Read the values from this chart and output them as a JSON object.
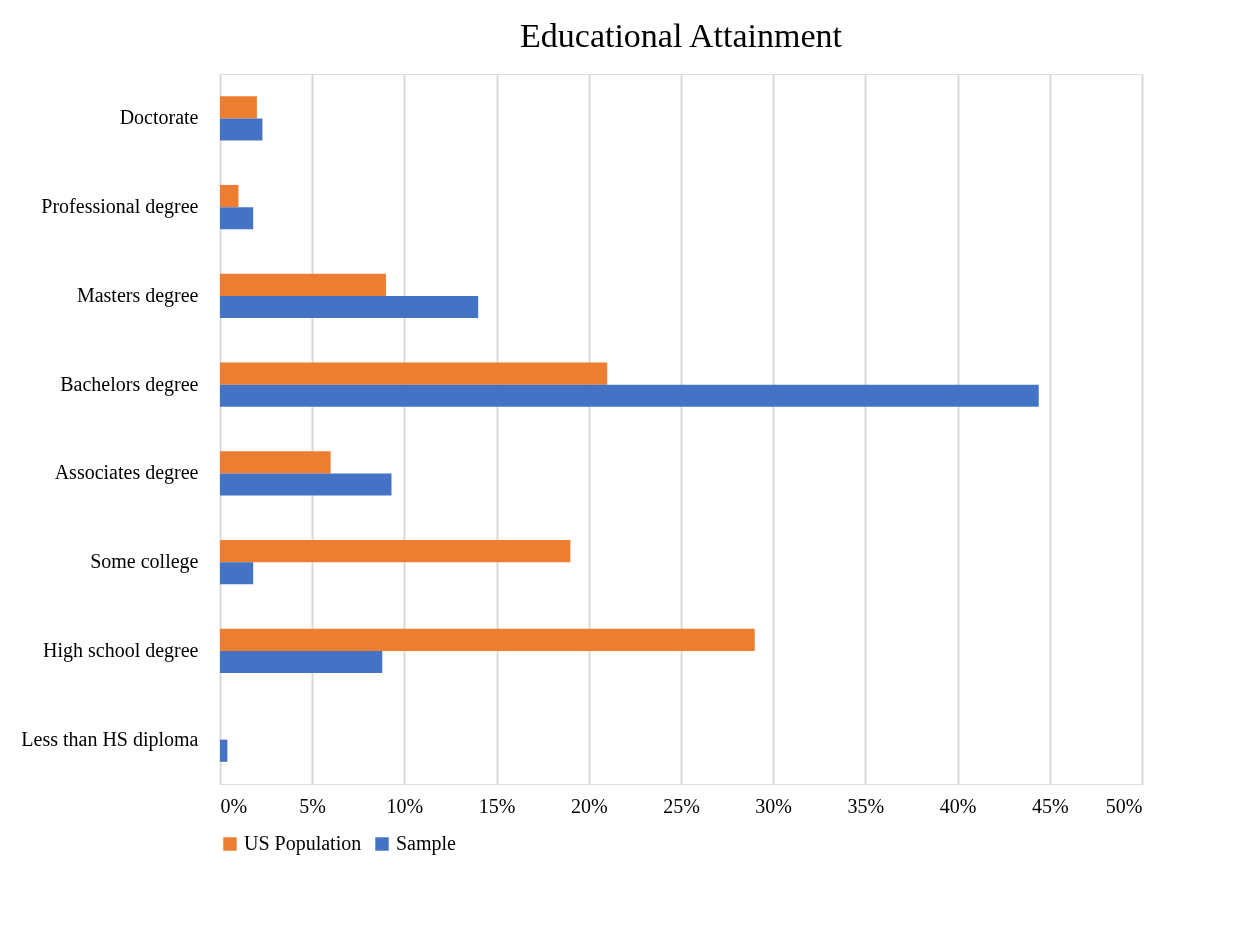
{
  "chart_data": {
    "type": "bar",
    "orientation": "horizontal",
    "title": "Educational Attainment",
    "categories": [
      "Doctorate",
      "Professional degree",
      "Masters degree",
      "Bachelors degree",
      "Associates degree",
      "Some college",
      "High school degree",
      "Less than HS diploma"
    ],
    "series": [
      {
        "name": "US Population",
        "color": "#ed7d31",
        "values": [
          2.0,
          1.0,
          9.0,
          21.0,
          6.0,
          19.0,
          29.0,
          null
        ]
      },
      {
        "name": "Sample",
        "color": "#4472c4",
        "values": [
          2.3,
          1.8,
          14.0,
          44.4,
          9.3,
          1.8,
          8.8,
          0.4
        ]
      }
    ],
    "xlim": [
      0,
      50
    ],
    "xticks": [
      {
        "value": 0,
        "label": "0%"
      },
      {
        "value": 5,
        "label": "5%"
      },
      {
        "value": 10,
        "label": "10%"
      },
      {
        "value": 15,
        "label": "15%"
      },
      {
        "value": 20,
        "label": "20%"
      },
      {
        "value": 25,
        "label": "25%"
      },
      {
        "value": 30,
        "label": "30%"
      },
      {
        "value": 35,
        "label": "35%"
      },
      {
        "value": 40,
        "label": "40%"
      },
      {
        "value": 45,
        "label": "45%"
      },
      {
        "value": 50,
        "label": "50%"
      }
    ],
    "grid": "x",
    "legend": "bottom"
  }
}
